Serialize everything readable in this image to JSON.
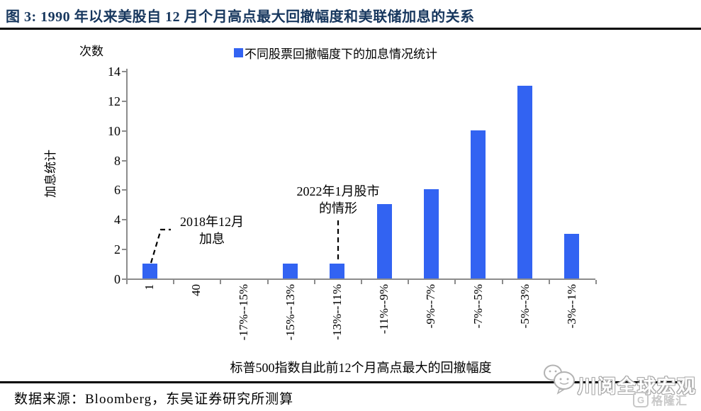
{
  "figure": {
    "title": "图 3:  1990 年以来美股自 12 月个月高点最大回撤幅度和美联储加息的关系"
  },
  "chart_data": {
    "type": "bar",
    "legend": "不同股票回撤幅度下的加息情况统计",
    "unit_label": "次数",
    "ylabel": "加息统计",
    "xlabel": "标普500指数自此前12个月高点最大的回撤幅度",
    "categories": [
      "1",
      "40",
      "-17%--15%",
      "-15%--13%",
      "-13%--11%",
      "-11%--9%",
      "-9%--7%",
      "-7%--5%",
      "-5%--3%",
      "-3%--1%"
    ],
    "values": [
      1,
      0,
      0,
      1,
      1,
      5,
      6,
      10,
      13,
      3
    ],
    "ylim": [
      0,
      14
    ],
    "ytick_step": 2,
    "grid": false,
    "legend_position": "top",
    "bar_color": "#3263F2",
    "annotations": [
      {
        "lines": [
          "2018年12月",
          "加息"
        ],
        "target_category_index": 0
      },
      {
        "lines": [
          "2022年1月股市",
          "的情形"
        ],
        "target_category_index": 4
      }
    ]
  },
  "source": {
    "text": "数据来源：Bloomberg，东吴证券研究所测算"
  },
  "watermark": {
    "name": "川阅全球宏观",
    "logo_letter": "G",
    "logo_text": "格隆汇"
  },
  "colors": {
    "bar": "#3263F2",
    "title": "#17375E",
    "axis": "#8C8C8C",
    "rule": "#000000"
  }
}
